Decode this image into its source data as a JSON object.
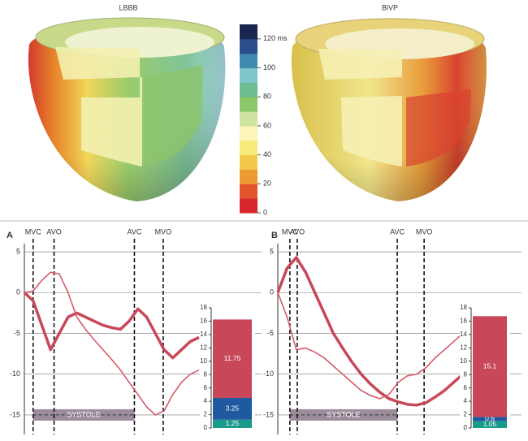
{
  "figure": {
    "left_title": "LBBB",
    "right_title": "BiVP"
  },
  "chart_data": [
    {
      "type": "colorbar",
      "colors": [
        "#d7262b",
        "#e2552d",
        "#ee9a33",
        "#f2c84a",
        "#f6ea7a",
        "#fbf6b8",
        "#cfe4a0",
        "#8cc76a",
        "#6dbb8e",
        "#7ec6c9",
        "#3f88b0",
        "#2a4d8c",
        "#1b2552"
      ],
      "ylim": [
        0,
        130
      ],
      "yticks": [
        0,
        20,
        40,
        60,
        80,
        100,
        {
          "value": 120,
          "label": "120 ms"
        }
      ]
    },
    {
      "type": "line",
      "panel": "A",
      "categories": [
        null,
        null,
        null,
        null,
        null,
        null,
        null,
        null,
        null,
        null,
        null,
        null,
        null,
        null,
        null,
        null,
        null,
        null,
        null,
        null,
        null
      ],
      "series": [
        {
          "color": "#c8485a",
          "values": [
            0,
            -1,
            -4,
            -7,
            -5,
            -3,
            -2.5,
            -3,
            -3.5,
            -4,
            -4.3,
            -4.5,
            -3.5,
            -2,
            -3,
            -5,
            -7,
            -8,
            -7,
            -6,
            -5.5
          ]
        },
        {
          "color": "#d85a6a",
          "values": [
            0,
            0.2,
            1.5,
            2.5,
            2.3,
            0,
            -3,
            -4.5,
            -5.8,
            -7,
            -8.2,
            -9.5,
            -11,
            -12.5,
            -14,
            -15,
            -14.5,
            -12.5,
            -11,
            -10,
            -9.5
          ]
        }
      ],
      "ylim": [
        -17,
        6
      ],
      "yticks": [
        5,
        0,
        -5,
        -10,
        -15
      ],
      "events": [
        {
          "label": "MVC",
          "x": 1
        },
        {
          "label": "AVO",
          "x": 3.4
        },
        {
          "label": "AVC",
          "x": 12.6
        },
        {
          "label": "MVO",
          "x": 15.9
        }
      ],
      "systole_label": "SYSTOLE"
    },
    {
      "type": "stacked_bar",
      "values": [
        1.25,
        3.25,
        11.75
      ],
      "colors": [
        "#1a9a8a",
        "#1f5aa0",
        "#c8485a"
      ],
      "ylim": [
        0,
        18
      ],
      "yticks": [
        0,
        2,
        4,
        6,
        8,
        10,
        12,
        14,
        16,
        18
      ]
    },
    {
      "type": "line",
      "panel": "B",
      "categories": [
        null,
        null,
        null,
        null,
        null,
        null,
        null,
        null,
        null,
        null,
        null,
        null,
        null,
        null,
        null,
        null,
        null,
        null,
        null,
        null,
        null
      ],
      "series": [
        {
          "color": "#c8485a",
          "values": [
            0,
            3,
            4.3,
            2.5,
            0,
            -2.5,
            -5,
            -6.8,
            -8.5,
            -10,
            -11.2,
            -12.2,
            -13,
            -13.4,
            -13.7,
            -13.8,
            -13.5,
            -12.8,
            -12,
            -11,
            -10
          ]
        },
        {
          "color": "#d85a6a",
          "values": [
            0,
            -3,
            -7,
            -6.8,
            -7.3,
            -8,
            -9,
            -10,
            -11,
            -12,
            -12.6,
            -13,
            -12.5,
            -11,
            -10.2,
            -10,
            -9.2,
            -8,
            -7,
            -6,
            -5
          ]
        }
      ],
      "ylim": [
        -17,
        6
      ],
      "yticks": [
        5,
        0,
        -5,
        -10,
        -15
      ],
      "events": [
        {
          "label": "MVC",
          "x": 1.3
        },
        {
          "label": "AVO",
          "x": 2.1
        },
        {
          "label": "AVC",
          "x": 12.9
        },
        {
          "label": "MVO",
          "x": 15.8
        }
      ],
      "systole_label": "SYSTOLE"
    },
    {
      "type": "stacked_bar",
      "values": [
        1.05,
        0.6,
        15.1
      ],
      "colors": [
        "#1a9a8a",
        "#1f5aa0",
        "#c8485a"
      ],
      "ylim": [
        0,
        18
      ],
      "yticks": [
        0,
        2,
        4,
        6,
        8,
        10,
        12,
        14,
        16,
        18
      ]
    }
  ]
}
